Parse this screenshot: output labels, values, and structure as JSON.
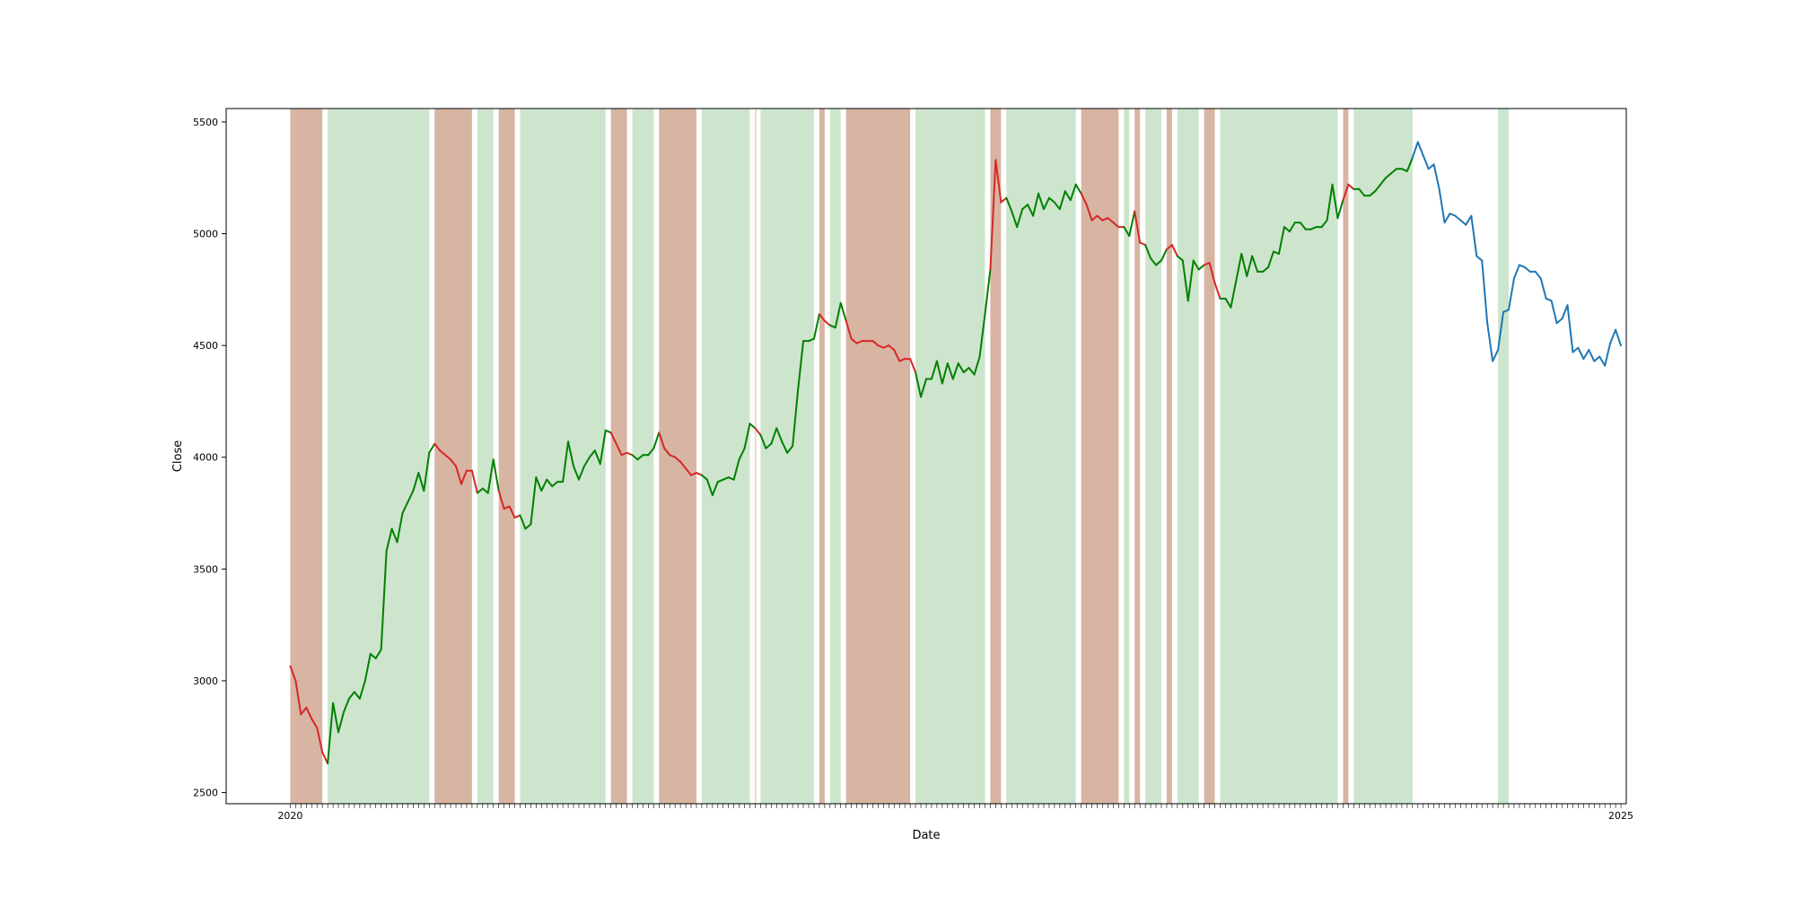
{
  "chart_data": {
    "type": "line",
    "title": "",
    "xlabel": "Date",
    "ylabel": "Close",
    "ylim": [
      2450,
      5560
    ],
    "yticks": [
      2500,
      3000,
      3500,
      4000,
      4500,
      5000,
      5500
    ],
    "xlim": [
      -12,
      250
    ],
    "grid": false,
    "legend": "none",
    "first_tick_label": "2020",
    "last_tick_label": "2025",
    "colors": {
      "up": "#008000",
      "down": "#d62728",
      "base": "#1f77b4",
      "up_span": "#cde5cd",
      "down_span": "#d7b5a2",
      "down_span_alone": "#ffcccc"
    },
    "values": [
      3065,
      3000,
      2850,
      2880,
      2830,
      2790,
      2680,
      2630,
      2900,
      2770,
      2860,
      2920,
      2950,
      2920,
      3000,
      3120,
      3100,
      3140,
      3580,
      3680,
      3620,
      3750,
      3800,
      3850,
      3930,
      3850,
      4020,
      4060,
      4030,
      4010,
      3990,
      3960,
      3880,
      3940,
      3940,
      3840,
      3860,
      3840,
      3990,
      3850,
      3770,
      3780,
      3730,
      3740,
      3680,
      3700,
      3910,
      3850,
      3900,
      3870,
      3890,
      3890,
      4070,
      3960,
      3900,
      3960,
      4000,
      4030,
      3970,
      4120,
      4110,
      4060,
      4010,
      4020,
      4010,
      3990,
      4010,
      4010,
      4040,
      4110,
      4040,
      4010,
      4000,
      3980,
      3950,
      3920,
      3930,
      3920,
      3900,
      3830,
      3890,
      3900,
      3910,
      3900,
      3990,
      4040,
      4150,
      4130,
      4100,
      4040,
      4060,
      4130,
      4070,
      4020,
      4050,
      4300,
      4520,
      4520,
      4530,
      4640,
      4610,
      4590,
      4580,
      4690,
      4610,
      4530,
      4510,
      4520,
      4520,
      4520,
      4500,
      4490,
      4500,
      4480,
      4430,
      4440,
      4440,
      4380,
      4270,
      4350,
      4350,
      4430,
      4330,
      4420,
      4350,
      4420,
      4380,
      4400,
      4370,
      4450,
      4640,
      4840,
      5330,
      5140,
      5160,
      5100,
      5030,
      5110,
      5130,
      5080,
      5180,
      5110,
      5160,
      5140,
      5110,
      5190,
      5150,
      5220,
      5180,
      5130,
      5060,
      5080,
      5060,
      5070,
      5050,
      5030,
      5030,
      4990,
      5100,
      4960,
      4950,
      4890,
      4860,
      4880,
      4930,
      4950,
      4900,
      4880,
      4700,
      4880,
      4840,
      4860,
      4870,
      4780,
      4710,
      4710,
      4670,
      4790,
      4910,
      4810,
      4900,
      4830,
      4830,
      4850,
      4920,
      4910,
      5030,
      5010,
      5050,
      5050,
      5020,
      5020,
      5030,
      5030,
      5060,
      5220,
      5070,
      5150,
      5220,
      5200,
      5200,
      5170,
      5170,
      5190,
      5220,
      5250,
      5270,
      5290,
      5290,
      5280,
      5340,
      5410,
      5350,
      5290,
      5310,
      5200,
      5050,
      5090,
      5080,
      5060,
      5040,
      5080,
      4900,
      4880,
      4600,
      4430,
      4480,
      4650,
      4660,
      4800,
      4860,
      4850,
      4830,
      4830,
      4800,
      4710,
      4700,
      4600,
      4620,
      4680,
      4470,
      4490,
      4440,
      4480,
      4430,
      4450,
      4410,
      4510,
      4570,
      4500
    ],
    "down_spans": [
      [
        0,
        6
      ],
      [
        27,
        34
      ],
      [
        39,
        42
      ],
      [
        60,
        63
      ],
      [
        69,
        76
      ],
      [
        87,
        87
      ],
      [
        99,
        100
      ],
      [
        104,
        116
      ],
      [
        131,
        133
      ],
      [
        148,
        155
      ],
      [
        158,
        159
      ],
      [
        164,
        165
      ],
      [
        171,
        173
      ],
      [
        197,
        198
      ]
    ],
    "up_spans": [
      [
        7,
        26
      ],
      [
        35,
        38
      ],
      [
        43,
        59
      ],
      [
        64,
        68
      ],
      [
        77,
        86
      ],
      [
        88,
        98
      ],
      [
        101,
        103
      ],
      [
        117,
        130
      ],
      [
        134,
        147
      ],
      [
        156,
        157
      ],
      [
        160,
        163
      ],
      [
        166,
        170
      ],
      [
        174,
        196
      ],
      [
        199,
        210
      ],
      [
        226,
        228
      ]
    ],
    "base_from_index": 210
  }
}
